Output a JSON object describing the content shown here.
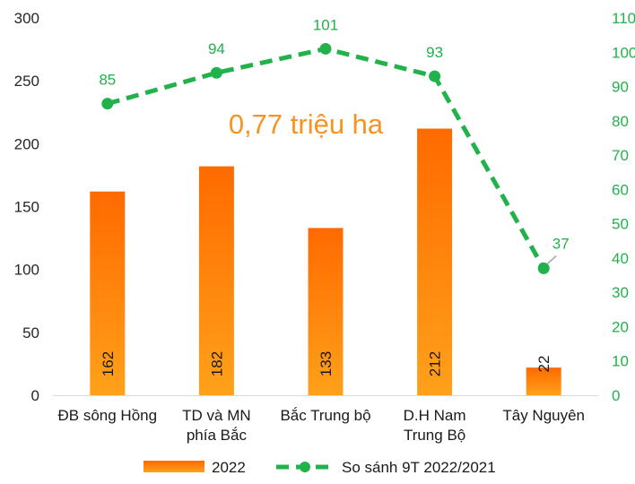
{
  "chart_data": {
    "type": "bar+line",
    "categories": [
      [
        "ĐB sông Hồng"
      ],
      [
        "TD và MN",
        "phía Bắc"
      ],
      [
        "Bắc Trung bộ"
      ],
      [
        "D.H Nam",
        "Trung Bộ"
      ],
      [
        "Tây Nguyên"
      ]
    ],
    "series": [
      {
        "name": "2022",
        "type": "bar",
        "axis": "left",
        "values": [
          162,
          182,
          133,
          212,
          22
        ],
        "labels": [
          "162",
          "182",
          "133",
          "212",
          "22"
        ],
        "color": "#ff6a00",
        "color_light": "#ffa11a"
      },
      {
        "name": "So sánh 9T 2022/2021",
        "type": "line",
        "axis": "right",
        "values": [
          85,
          94,
          101,
          93,
          37
        ],
        "labels": [
          "85",
          "94",
          "101",
          "93",
          "37"
        ],
        "color": "#21b24b"
      }
    ],
    "y_left": {
      "min": 0,
      "max": 300,
      "ticks": [
        0,
        50,
        100,
        150,
        200,
        250,
        300
      ],
      "tick_labels": [
        "0",
        "50",
        "100",
        "150",
        "200",
        "250",
        "300"
      ]
    },
    "y_right": {
      "min": 0,
      "max": 110,
      "ticks": [
        0,
        10,
        20,
        30,
        40,
        50,
        60,
        70,
        80,
        90,
        100,
        110
      ],
      "tick_labels": [
        "0",
        "10",
        "20",
        "30",
        "40",
        "50",
        "60",
        "70",
        "80",
        "90",
        "100",
        "110"
      ]
    },
    "annotation": "0,77 triệu ha",
    "legend": {
      "position": "bottom",
      "items": [
        "2022",
        "So sánh 9T 2022/2021"
      ]
    },
    "grid": false
  }
}
